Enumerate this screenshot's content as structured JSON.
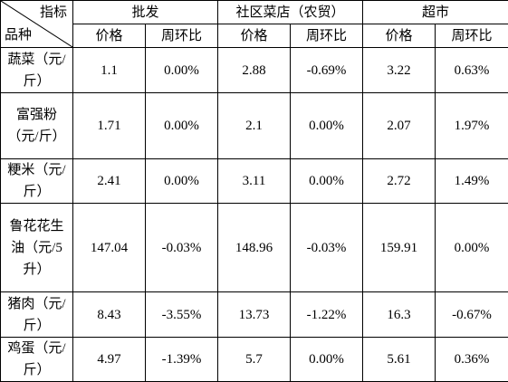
{
  "table": {
    "corner": {
      "top": "指标",
      "bottom": "品种"
    },
    "groups": [
      "批发",
      "社区菜店（农贸）",
      "超市"
    ],
    "subheaders": [
      "价格",
      "周环比",
      "价格",
      "周环比",
      "价格",
      "周环比"
    ],
    "rows": [
      [
        "蔬菜（元/斤）",
        "1.1",
        "0.00%",
        "2.88",
        "-0.69%",
        "3.22",
        "0.63%"
      ],
      [
        "富强粉（元/斤）",
        "1.71",
        "0.00%",
        "2.1",
        "0.00%",
        "2.07",
        "1.97%"
      ],
      [
        "粳米（元/斤）",
        "2.41",
        "0.00%",
        "3.11",
        "0.00%",
        "2.72",
        "1.49%"
      ],
      [
        "鲁花花生油（元/5升）",
        "147.04",
        "-0.03%",
        "148.96",
        "-0.03%",
        "159.91",
        "0.00%"
      ],
      [
        "猪肉（元/斤）",
        "8.43",
        "-3.55%",
        "13.73",
        "-1.22%",
        "16.3",
        "-0.67%"
      ],
      [
        "鸡蛋（元/斤）",
        "4.97",
        "-1.39%",
        "5.7",
        "0.00%",
        "5.61",
        "0.36%"
      ]
    ]
  }
}
